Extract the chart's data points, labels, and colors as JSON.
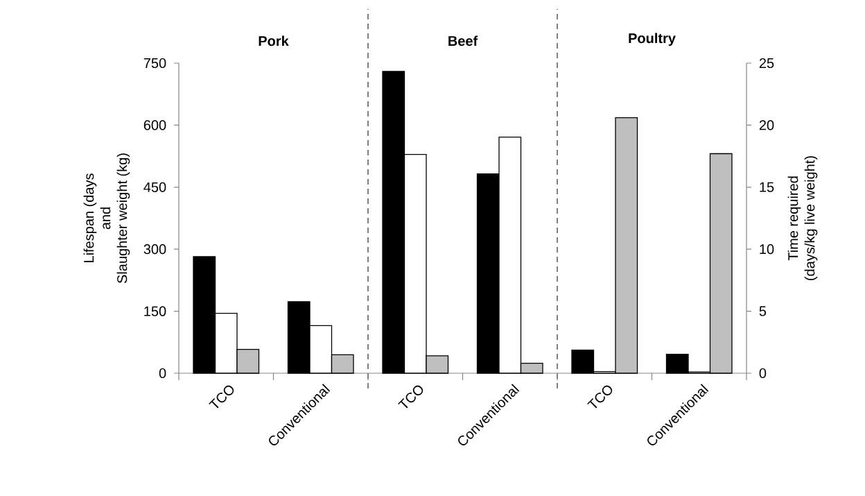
{
  "chart_data": {
    "type": "bar",
    "categories": [
      "TCO",
      "Conventional",
      "TCO",
      "Conventional",
      "TCO",
      "Conventional"
    ],
    "series": [
      {
        "color": "#000000",
        "values": [
          282,
          173,
          730,
          482,
          56,
          46
        ]
      },
      {
        "color": "#ffffff",
        "values": [
          145,
          115,
          529,
          571,
          4,
          3
        ]
      },
      {
        "color": "#bfbfbf",
        "axis": "y2",
        "values": [
          1.92,
          1.49,
          1.4,
          0.8,
          20.6,
          17.7
        ]
      }
    ],
    "ylabel": "Lifespan (days\nand\nSlaughter weight (kg)",
    "y2label": "Time required\n(days/kg live weight)",
    "ylim": [
      0,
      750
    ],
    "yticks": [
      0,
      150,
      300,
      450,
      600,
      750
    ],
    "y2lim": [
      0,
      25
    ],
    "y2ticks": [
      0,
      5,
      10,
      15,
      20,
      25
    ],
    "annotations": [
      "Pork",
      "Beef",
      "Poultry"
    ]
  }
}
